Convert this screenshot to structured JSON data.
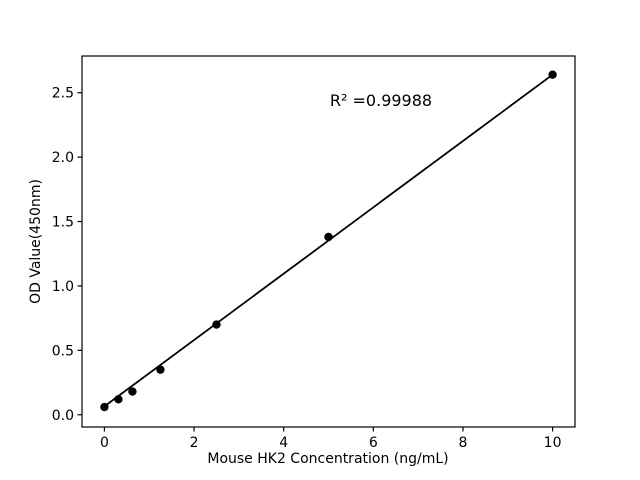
{
  "chart_data": {
    "type": "scatter",
    "title": "",
    "xlabel": "Mouse HK2 Concentration (ng/mL)",
    "ylabel": "OD Value(450nm)",
    "annotation": "R² =0.99988",
    "annotation_xy": [
      6.17,
      2.44
    ],
    "x": [
      0,
      0.3125,
      0.625,
      1.25,
      2.5,
      5,
      10
    ],
    "y": [
      0.06,
      0.12,
      0.18,
      0.35,
      0.7,
      1.38,
      2.64
    ],
    "fit_line": {
      "x": [
        0,
        10
      ],
      "y": [
        0.065,
        2.64
      ]
    },
    "xticks": [
      0,
      2,
      4,
      6,
      8,
      10
    ],
    "yticks": [
      0.0,
      0.5,
      1.0,
      1.5,
      2.0,
      2.5
    ],
    "xlim": [
      -0.5,
      10.5
    ],
    "ylim": [
      -0.095,
      2.785
    ],
    "grid": false,
    "legend": null,
    "marker_color": "#000000",
    "line_color": "#000000",
    "axis_color": "#000000",
    "background": "#ffffff"
  }
}
